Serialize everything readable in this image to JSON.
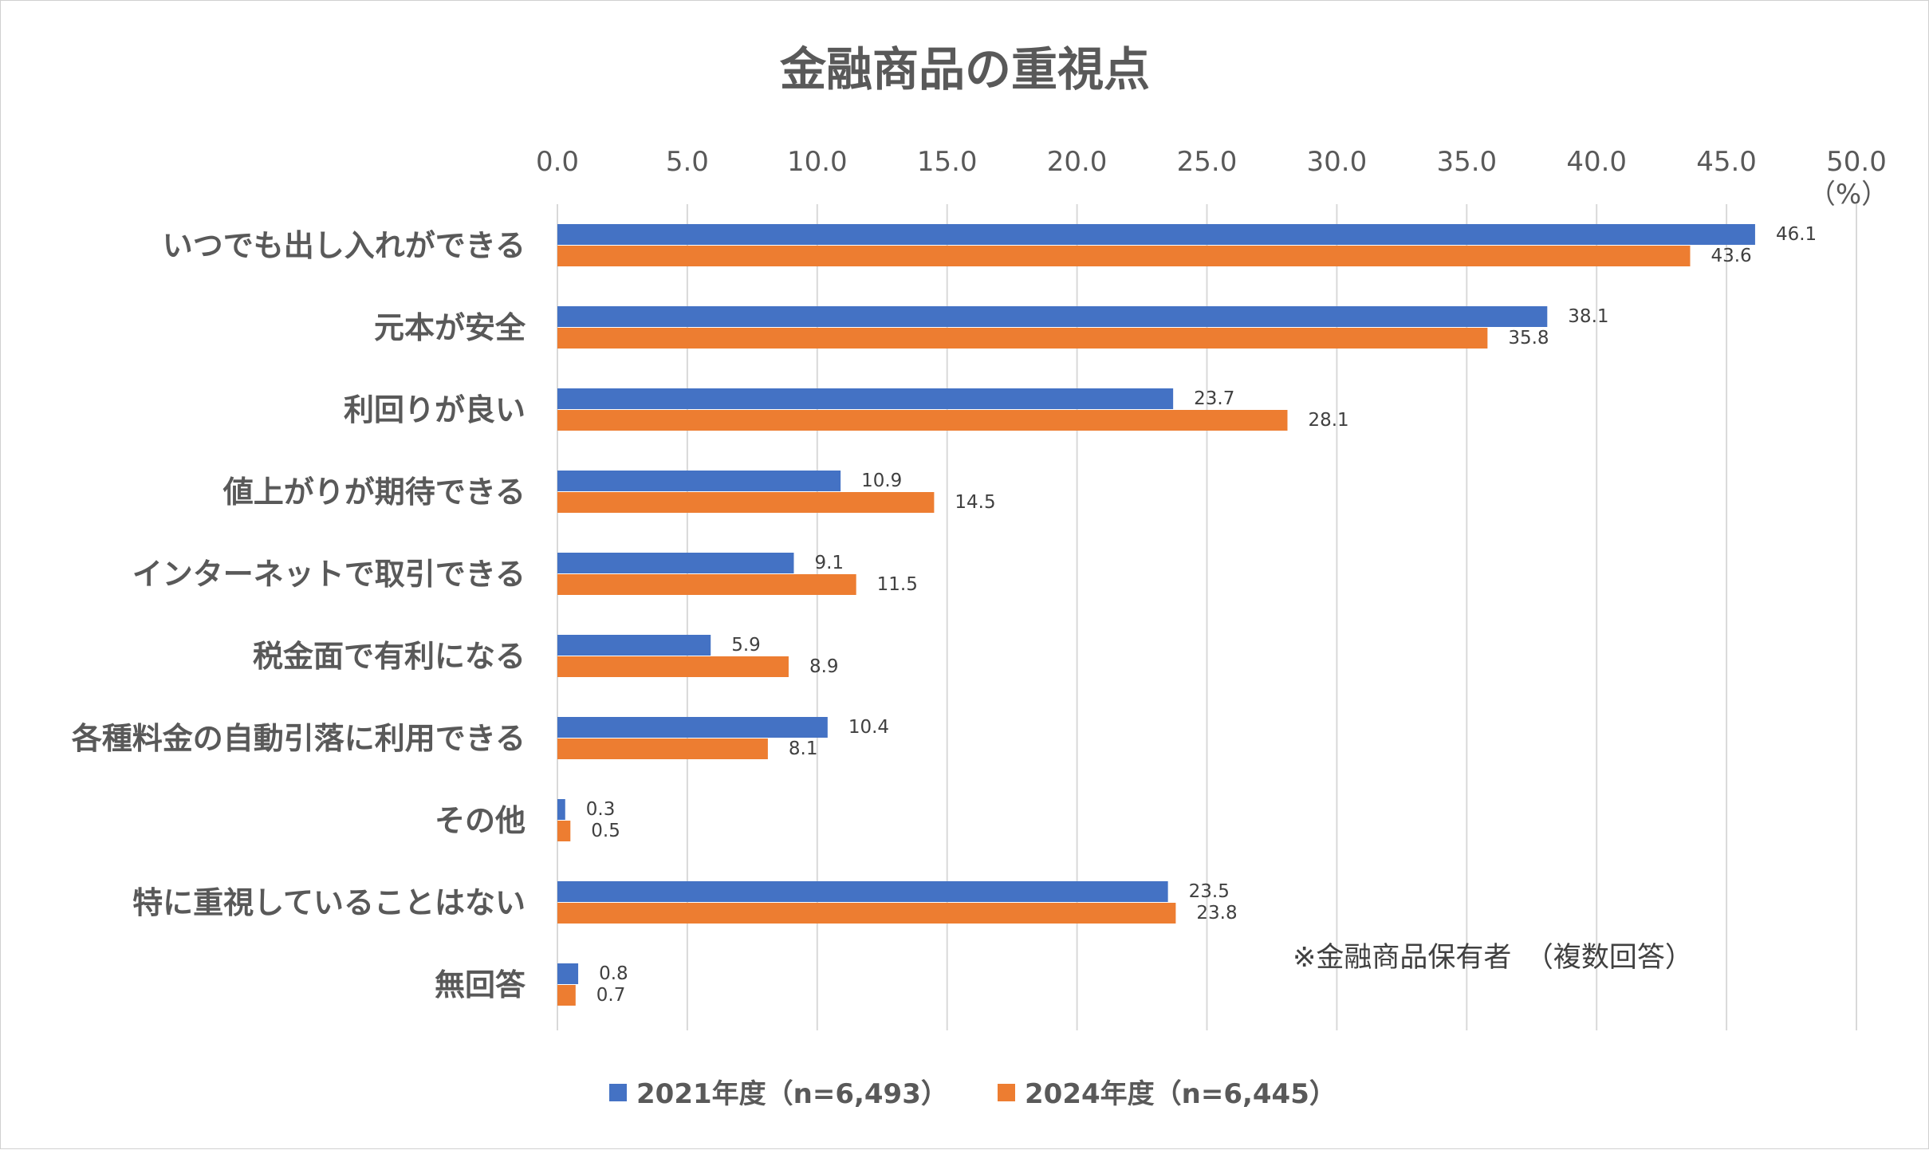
{
  "chart_data": {
    "type": "bar",
    "orientation": "horizontal",
    "title": "金融商品の重視点",
    "unit_label": "（%）",
    "xlim": [
      0,
      50
    ],
    "x_ticks": [
      "0.0",
      "5.0",
      "10.0",
      "15.0",
      "20.0",
      "25.0",
      "30.0",
      "35.0",
      "40.0",
      "45.0",
      "50.0"
    ],
    "grid": true,
    "legend_position": "bottom",
    "note": "※金融商品保有者　（複数回答）",
    "categories": [
      "いつでも出し入れができる",
      "元本が安全",
      "利回りが良い",
      "値上がりが期待できる",
      "インターネットで取引できる",
      "税金面で有利になる",
      "各種料金の自動引落に利用できる",
      "その他",
      "特に重視していることはない",
      "無回答"
    ],
    "series": [
      {
        "name": "2021年度（n=6,493）",
        "color": "#4472c4",
        "values": [
          46.1,
          38.1,
          23.7,
          10.9,
          9.1,
          5.9,
          10.4,
          0.3,
          23.5,
          0.8
        ],
        "labels": [
          "46.1",
          "38.1",
          "23.7",
          "10.9",
          "9.1",
          "5.9",
          "10.4",
          "0.3",
          "23.5",
          "0.8"
        ]
      },
      {
        "name": "2024年度（n=6,445）",
        "color": "#ed7d31",
        "values": [
          43.6,
          35.8,
          28.1,
          14.5,
          11.5,
          8.9,
          8.1,
          0.5,
          23.8,
          0.7
        ],
        "labels": [
          "43.6",
          "35.8",
          "28.1",
          "14.5",
          "11.5",
          "8.9",
          "8.1",
          "0.5",
          "23.8",
          "0.7"
        ]
      }
    ]
  }
}
